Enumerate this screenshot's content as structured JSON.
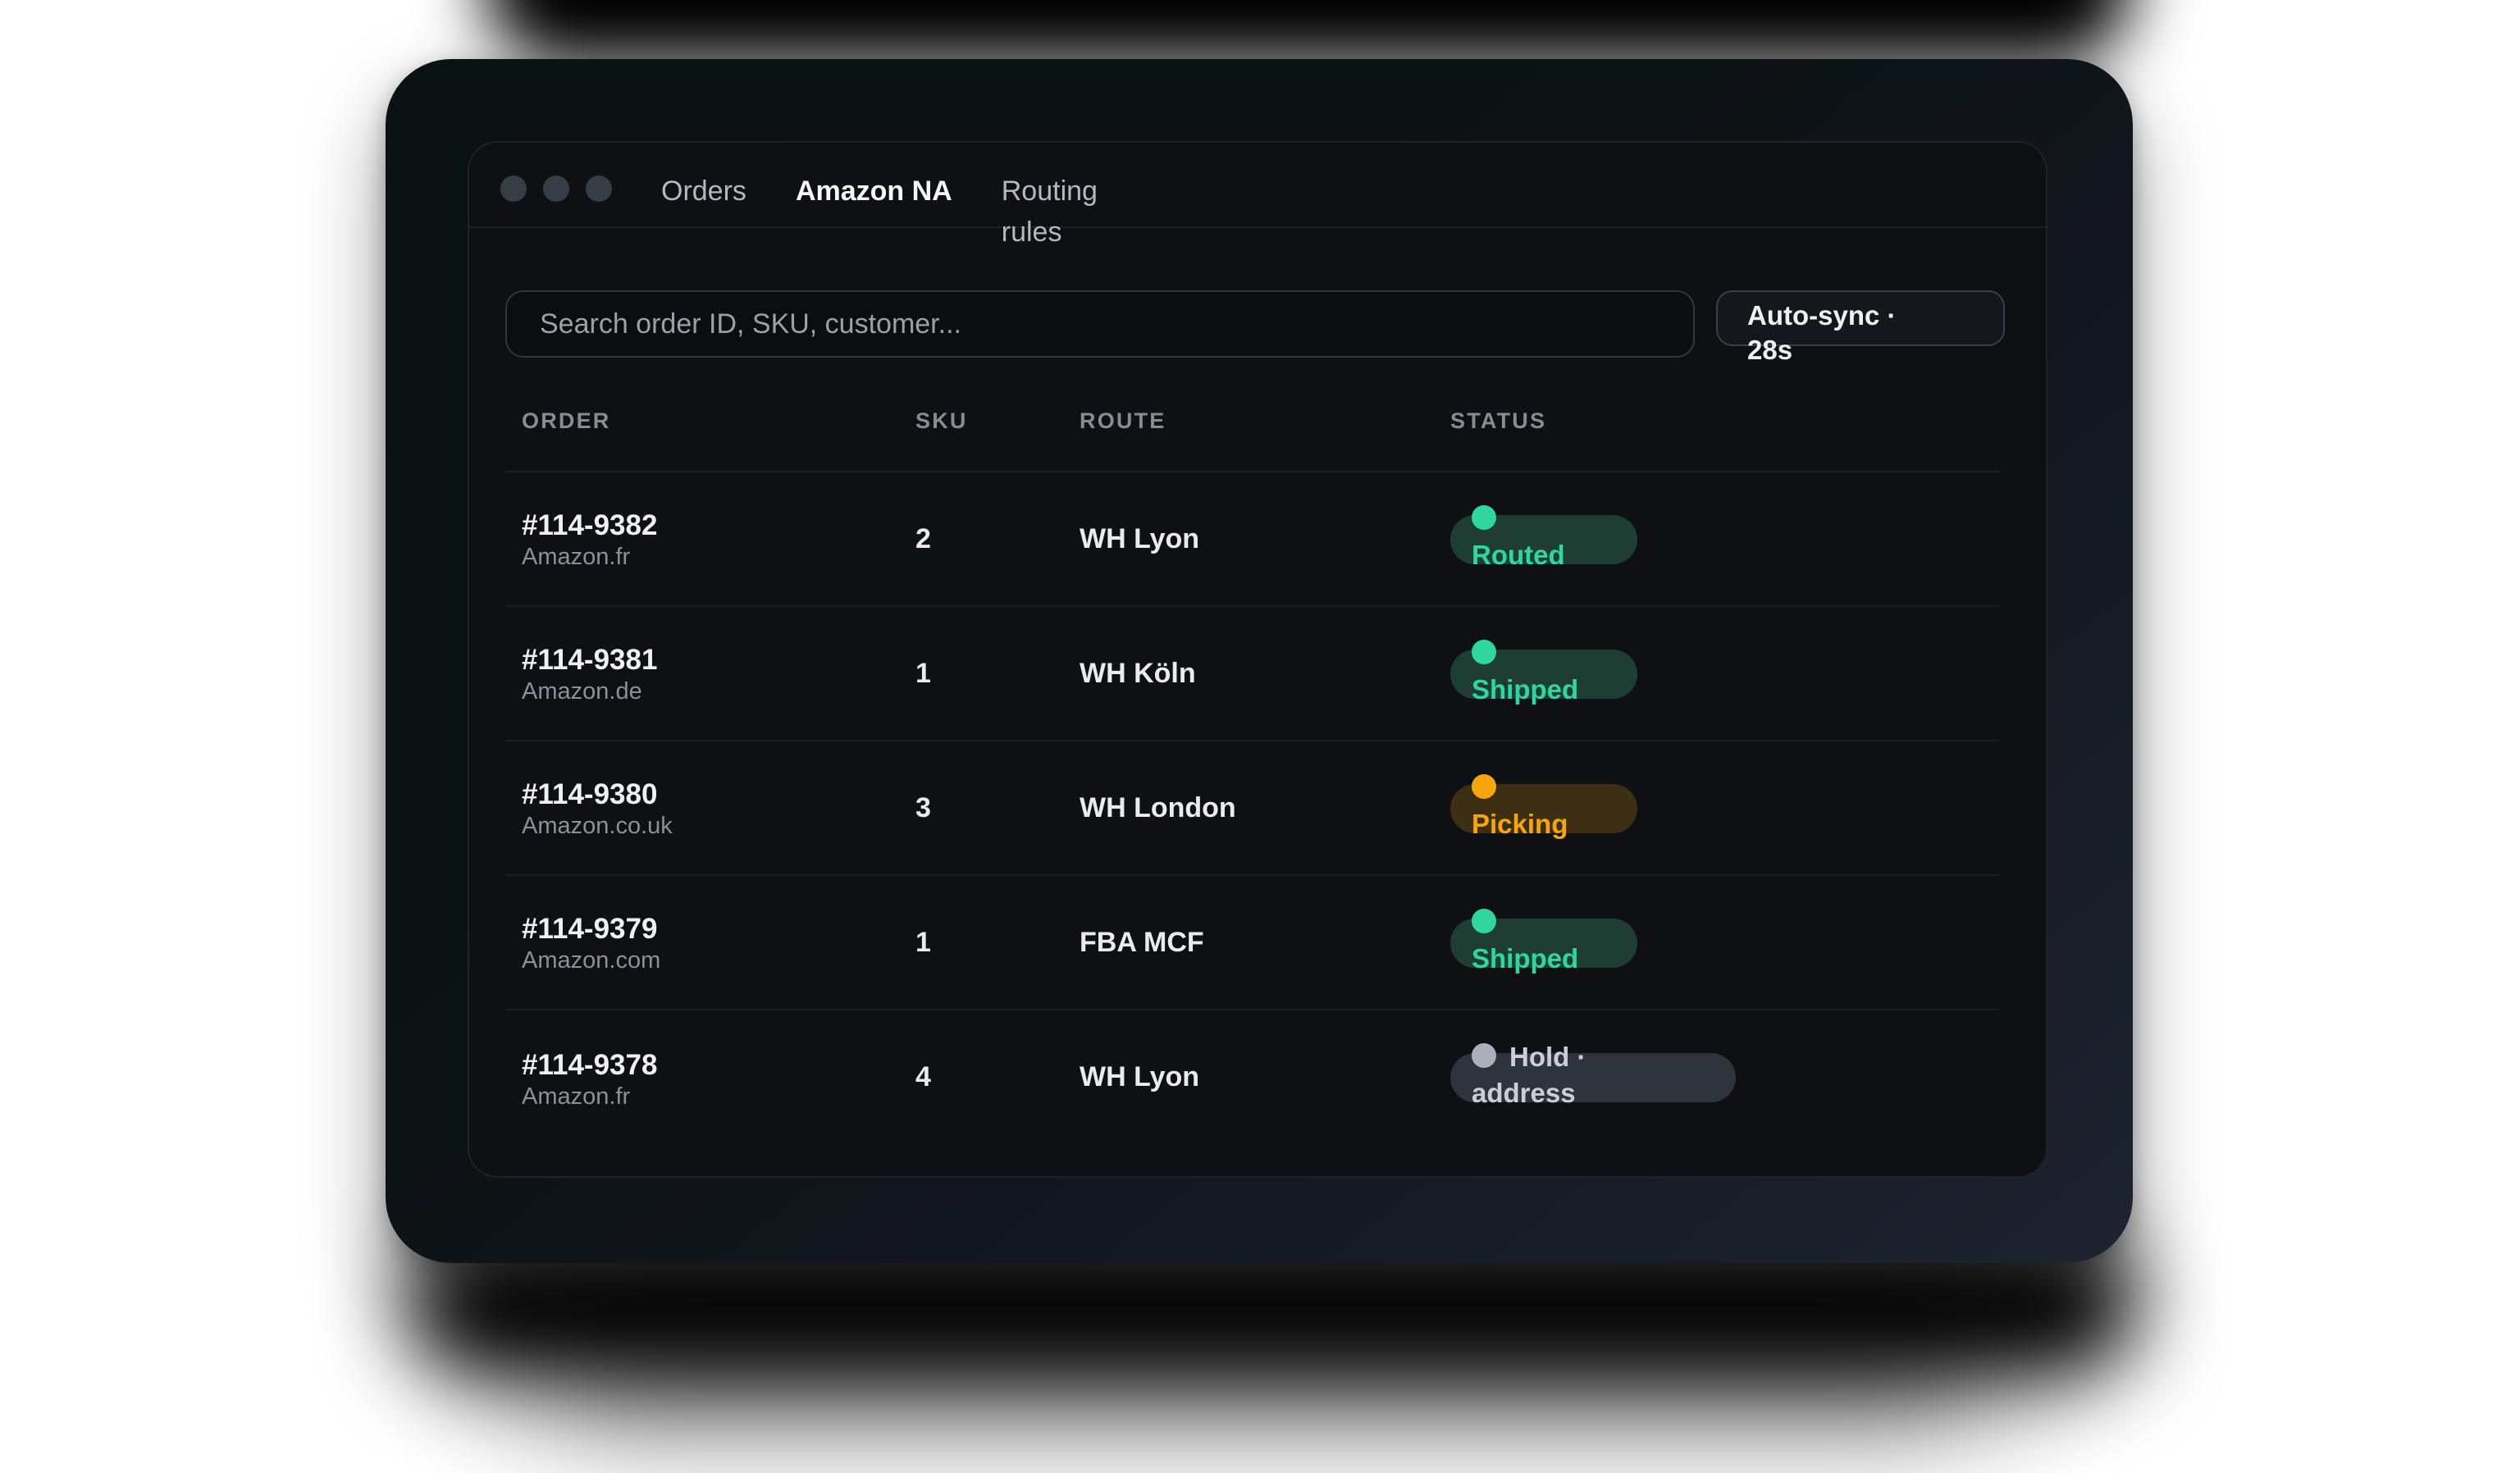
{
  "window_controls": {
    "dots": 3
  },
  "tabs": [
    {
      "label": "Orders",
      "active": false
    },
    {
      "label": "Amazon NA",
      "active": true
    },
    {
      "label": "Routing rules",
      "active": false
    }
  ],
  "search": {
    "placeholder": "Search order ID, SKU, customer..."
  },
  "auto_sync": {
    "label_line1": "Auto-sync ·",
    "label_line2": "28s"
  },
  "table": {
    "headers": [
      "ORDER",
      "SKU",
      "ROUTE",
      "STATUS"
    ],
    "rows": [
      {
        "order_id": "#114-9382",
        "marketplace": "Amazon.fr",
        "sku": "2",
        "route": "WH Lyon",
        "status": {
          "tone": "green",
          "line1": "",
          "line2": "Routed"
        }
      },
      {
        "order_id": "#114-9381",
        "marketplace": "Amazon.de",
        "sku": "1",
        "route": "WH Köln",
        "status": {
          "tone": "green",
          "line1": "",
          "line2": "Shipped"
        }
      },
      {
        "order_id": "#114-9380",
        "marketplace": "Amazon.co.uk",
        "sku": "3",
        "route": "WH London",
        "status": {
          "tone": "orange",
          "line1": "",
          "line2": "Picking"
        }
      },
      {
        "order_id": "#114-9379",
        "marketplace": "Amazon.com",
        "sku": "1",
        "route": "FBA MCF",
        "status": {
          "tone": "green",
          "line1": "",
          "line2": "Shipped"
        }
      },
      {
        "order_id": "#114-9378",
        "marketplace": "Amazon.fr",
        "sku": "4",
        "route": "WH Lyon",
        "status": {
          "tone": "gray",
          "line1": "Hold ·",
          "line2": "address"
        }
      }
    ]
  },
  "colors": {
    "status_green": "#2fd79e",
    "status_orange": "#f6a60b",
    "status_gray": "#c9cfd8",
    "page_background": "#ffffff"
  }
}
